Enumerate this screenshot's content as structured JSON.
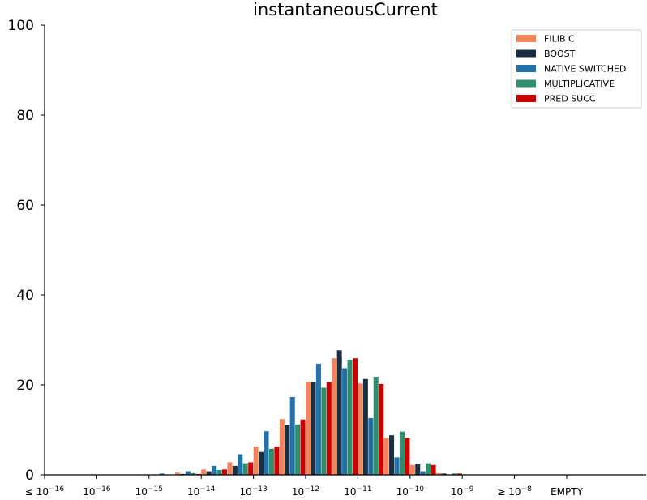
{
  "chart_data": {
    "type": "bar",
    "title": "instantaneousCurrent",
    "xlabel": "",
    "ylabel": "",
    "ylim": [
      0,
      100
    ],
    "y_ticks": [
      0,
      20,
      40,
      60,
      80,
      100
    ],
    "legend_position": "top-right",
    "grid": false,
    "x_ticks": [
      {
        "base": "10",
        "exp": "−16",
        "prefix": "≤"
      },
      {
        "base": "10",
        "exp": "−16",
        "prefix": ""
      },
      {
        "base": "10",
        "exp": "−15",
        "prefix": ""
      },
      {
        "base": "10",
        "exp": "−14",
        "prefix": ""
      },
      {
        "base": "10",
        "exp": "−13",
        "prefix": ""
      },
      {
        "base": "10",
        "exp": "−12",
        "prefix": ""
      },
      {
        "base": "10",
        "exp": "−11",
        "prefix": ""
      },
      {
        "base": "10",
        "exp": "−10",
        "prefix": ""
      },
      {
        "base": "10",
        "exp": "−9",
        "prefix": ""
      },
      {
        "base": "10",
        "exp": "−8",
        "prefix": "≥"
      },
      {
        "base": "EMPTY",
        "exp": "",
        "prefix": ""
      }
    ],
    "bins_per_decade": 2,
    "num_bins": 20,
    "series": [
      {
        "name": "FILIB C",
        "color": "#f4845a",
        "values": [
          0,
          0,
          0,
          0,
          0.1,
          0.5,
          1.2,
          2.8,
          6.3,
          12.4,
          20.7,
          25.9,
          20.3,
          8.2,
          2.2,
          0.4,
          0,
          0,
          0,
          0
        ]
      },
      {
        "name": "BOOST",
        "color": "#1c2e44",
        "values": [
          0,
          0,
          0,
          0,
          0.1,
          0.2,
          0.8,
          2.0,
          5.1,
          11.1,
          20.7,
          27.7,
          21.3,
          8.8,
          2.4,
          0.3,
          0,
          0,
          0,
          0
        ]
      },
      {
        "name": "NATIVE SWITCHED",
        "color": "#2371a8",
        "values": [
          0,
          0,
          0,
          0,
          0.3,
          0.8,
          2.0,
          4.6,
          9.7,
          17.3,
          24.7,
          23.7,
          12.6,
          3.9,
          0.8,
          0.1,
          0,
          0,
          0,
          0
        ]
      },
      {
        "name": "MULTIPLICATIVE",
        "color": "#2e8f6c",
        "values": [
          0,
          0,
          0,
          0,
          0,
          0.4,
          1.1,
          2.6,
          5.8,
          11.2,
          19.4,
          25.6,
          21.8,
          9.6,
          2.6,
          0.3,
          0,
          0,
          0,
          0
        ]
      },
      {
        "name": "PRED SUCC",
        "color": "#cc0000",
        "values": [
          0,
          0,
          0,
          0,
          0,
          0.2,
          1.2,
          2.8,
          6.3,
          12.3,
          20.6,
          25.9,
          20.2,
          8.2,
          2.2,
          0.3,
          0,
          0,
          0,
          0
        ]
      }
    ]
  }
}
